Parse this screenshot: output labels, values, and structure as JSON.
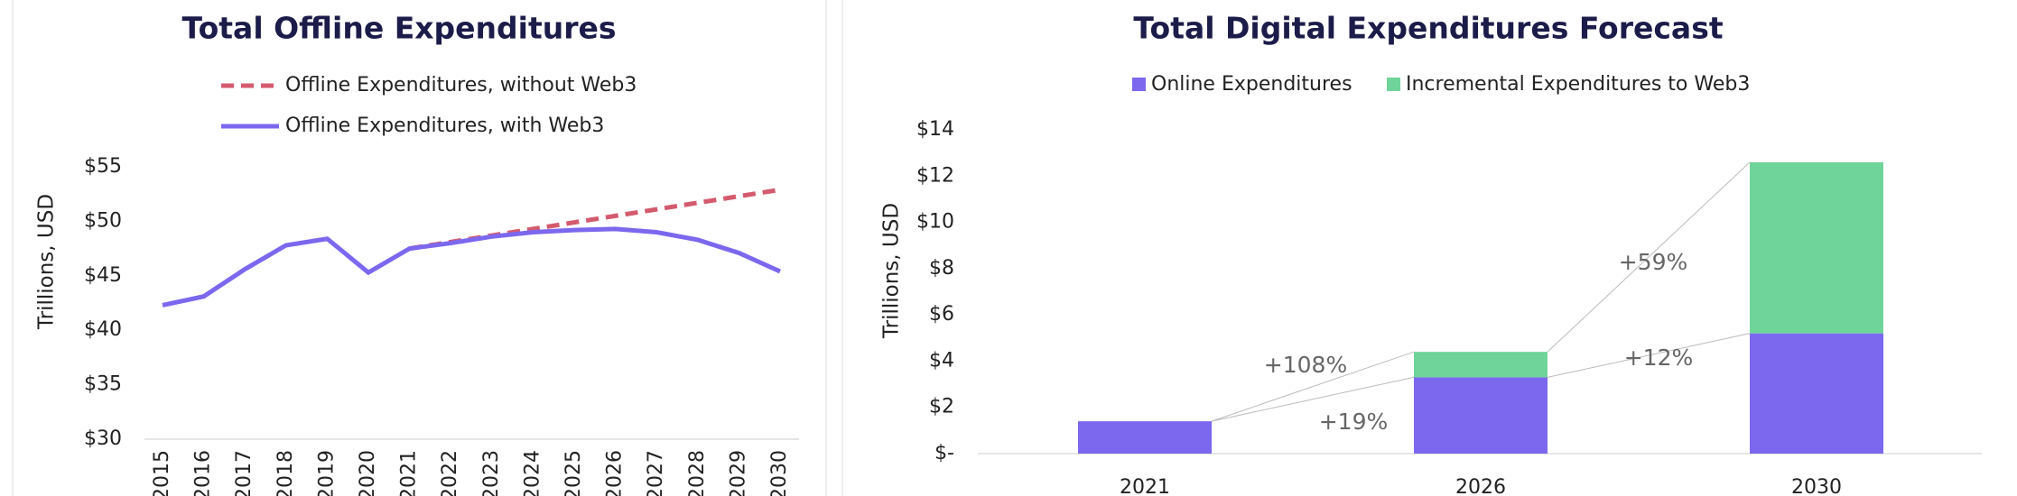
{
  "chart_data": [
    {
      "type": "line",
      "title": "Total Offline Expenditures",
      "y_label": "Trillions, USD",
      "categories": [
        "2015",
        "2016",
        "2017",
        "2018",
        "2019",
        "2020",
        "2021",
        "2022",
        "2023",
        "2024",
        "2025",
        "2026",
        "2027",
        "2028",
        "2029",
        "2030"
      ],
      "series": [
        {
          "name": "Offline Expenditures, without Web3",
          "color": "#d45a6e",
          "dashed": true,
          "values": [
            null,
            null,
            null,
            null,
            null,
            null,
            47.5,
            48.1,
            48.7,
            49.3,
            49.9,
            50.5,
            51.1,
            51.7,
            52.3,
            52.9
          ]
        },
        {
          "name": "Offline Expenditures, with Web3",
          "color": "#7b68ee",
          "dashed": false,
          "values": [
            42.3,
            43.1,
            45.6,
            47.8,
            48.4,
            45.3,
            47.5,
            48.0,
            48.6,
            49.0,
            49.2,
            49.3,
            49.0,
            48.3,
            47.1,
            45.4
          ]
        }
      ],
      "ylim": [
        30,
        55
      ],
      "yticks": [
        {
          "value": 30,
          "label": "$30"
        },
        {
          "value": 35,
          "label": "$35"
        },
        {
          "value": 40,
          "label": "$40"
        },
        {
          "value": 45,
          "label": "$45"
        },
        {
          "value": 50,
          "label": "$50"
        },
        {
          "value": 55,
          "label": "$55"
        }
      ]
    },
    {
      "type": "stacked_bar",
      "title": "Total Digital Expenditures Forecast",
      "y_label": "Trillions, USD",
      "categories": [
        "2021",
        "2026",
        "2030"
      ],
      "series": [
        {
          "name": "Online Expenditures",
          "color": "#7b68ee",
          "values": [
            1.4,
            3.3,
            5.2
          ]
        },
        {
          "name": "Incremental Expenditures to Web3",
          "color": "#6fd49a",
          "values": [
            null,
            1.1,
            7.4
          ]
        }
      ],
      "annotations": [
        "+108%",
        "+19%",
        "+59%",
        "+12%"
      ],
      "ylim": [
        0,
        14
      ],
      "yticks": [
        {
          "value": 0,
          "label": "$-"
        },
        {
          "value": 2,
          "label": "$2"
        },
        {
          "value": 4,
          "label": "$4"
        },
        {
          "value": 6,
          "label": "$6"
        },
        {
          "value": 8,
          "label": "$8"
        },
        {
          "value": 10,
          "label": "$10"
        },
        {
          "value": 12,
          "label": "$12"
        },
        {
          "value": 14,
          "label": "$14"
        }
      ]
    }
  ]
}
